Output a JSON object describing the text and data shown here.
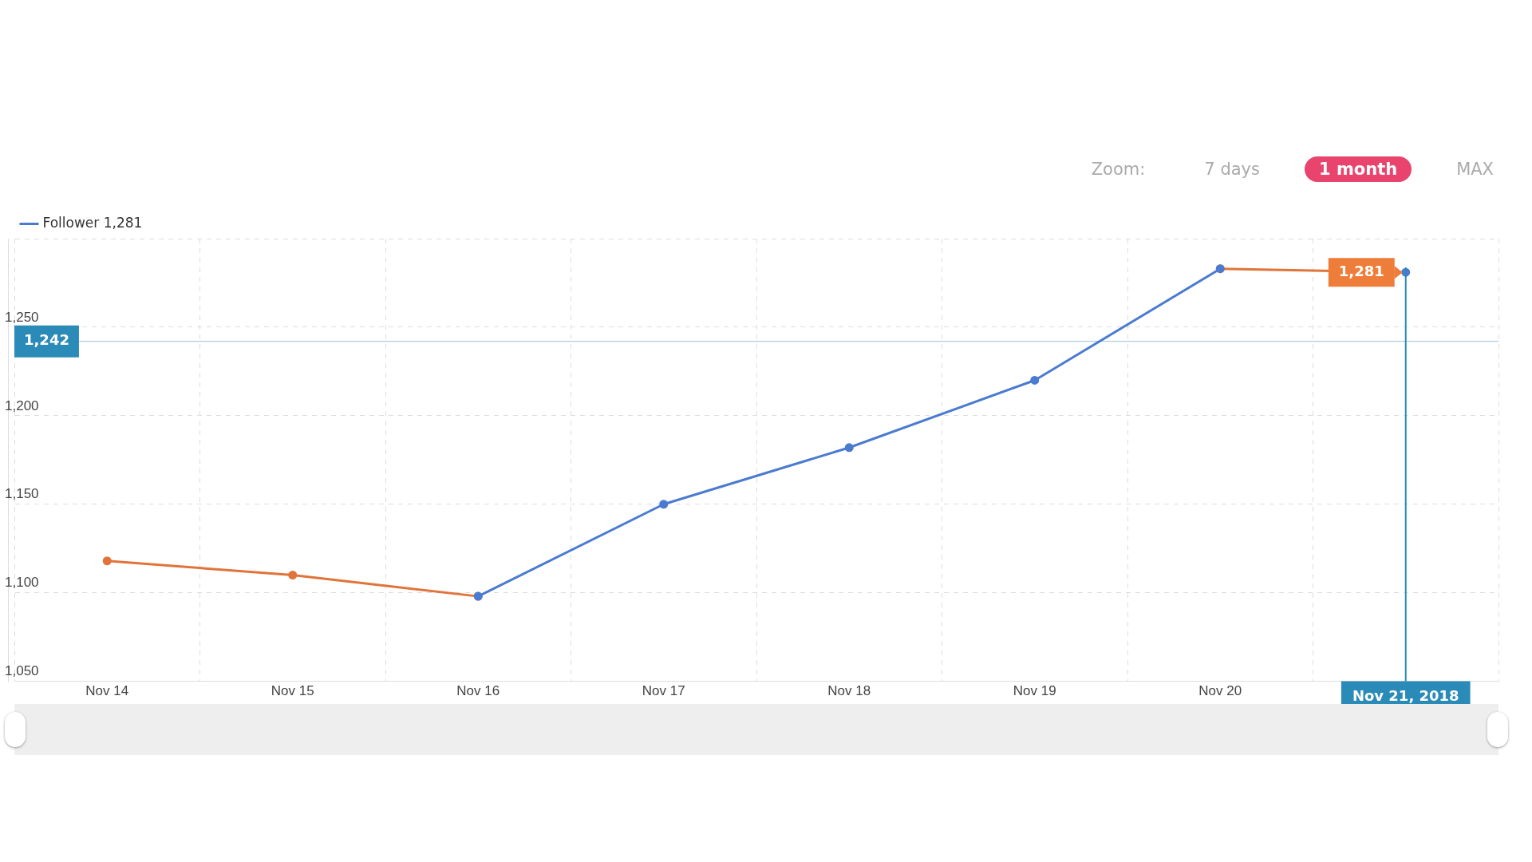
{
  "chart_data": {
    "type": "line",
    "x": [
      "2018-11-14",
      "2018-11-15",
      "2018-11-16",
      "2018-11-17",
      "2018-11-18",
      "2018-11-19",
      "2018-11-20",
      "2018-11-21"
    ],
    "series": [
      {
        "name": "Follower 1,281",
        "color": "#4a7bd0",
        "values": [
          null,
          null,
          1098,
          1150,
          1182,
          1220,
          1283,
          null
        ]
      },
      {
        "color": "#e0743a",
        "colors": [
          "#e0743a",
          "#e0743a",
          "#e0743a",
          "#e0743a",
          "#e0743a",
          "#e0743a",
          "#e0743a",
          "#4a7bd0"
        ],
        "values": [
          1118,
          1110,
          1098,
          null,
          null,
          null,
          1283,
          1281
        ]
      }
    ],
    "xlim": [
      "2018-11-13T12:00",
      "2018-11-21T12:00"
    ],
    "xticks": [
      {
        "value": "2018-11-13T12:00",
        "label": null
      },
      {
        "value": "2018-11-14",
        "label": "Nov 14"
      },
      {
        "value": "2018-11-14T12:00",
        "label": null
      },
      {
        "value": "2018-11-15",
        "label": "Nov 15"
      },
      {
        "value": "2018-11-15T12:00",
        "label": null
      },
      {
        "value": "2018-11-16",
        "label": "Nov 16"
      },
      {
        "value": "2018-11-16T12:00",
        "label": null
      },
      {
        "value": "2018-11-17",
        "label": "Nov 17"
      },
      {
        "value": "2018-11-17T12:00",
        "label": null
      },
      {
        "value": "2018-11-18",
        "label": "Nov 18"
      },
      {
        "value": "2018-11-18T12:00",
        "label": null
      },
      {
        "value": "2018-11-19",
        "label": "Nov 19"
      },
      {
        "value": "2018-11-19T12:00",
        "label": null
      },
      {
        "value": "2018-11-20",
        "label": "Nov 20"
      },
      {
        "value": "2018-11-20T12:00",
        "label": null
      },
      {
        "value": "2018-11-21T12:00",
        "label": null
      }
    ],
    "ylim": [
      1050,
      1300
    ],
    "yticks": [
      {
        "value": 1050,
        "label": "1,050"
      },
      {
        "value": 1100,
        "label": "1,100"
      },
      {
        "value": 1150,
        "label": "1,150"
      },
      {
        "value": 1200,
        "label": "1,200"
      },
      {
        "value": 1250,
        "label": "1,250"
      },
      {
        "value": 1300,
        "label": null
      }
    ],
    "ref_lines": [
      {
        "axis": "y",
        "value": 1242,
        "label": "1,242",
        "color": "#2a8ab8"
      },
      {
        "axis": "x",
        "value": "2018-11-21",
        "label": "Nov 21, 2018",
        "color": "#2a8ab8"
      }
    ],
    "annotations": [
      "Zoom:",
      "7 days",
      "1 month",
      "MAX",
      {
        "text": "1,281",
        "x": "2018-11-21",
        "y": 1281
      }
    ],
    "grid": true,
    "legend": "top left",
    "marker": "circle",
    "line_style": "solid"
  }
}
